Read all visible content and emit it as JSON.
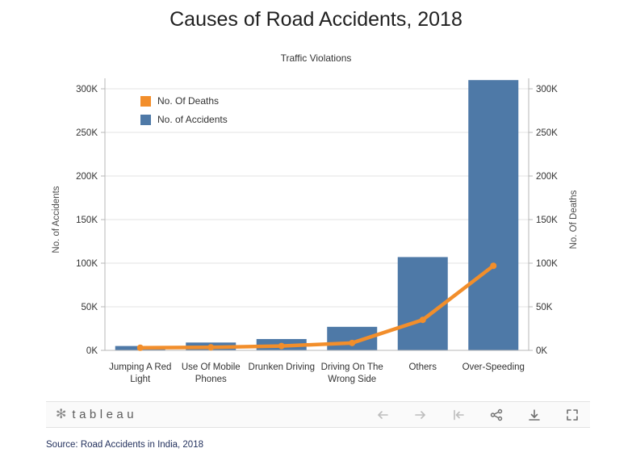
{
  "title": "Causes of Road Accidents, 2018",
  "chart_data": {
    "type": "bar",
    "subtitle": "Traffic Violations",
    "categories": [
      "Jumping A Red Light",
      "Use Of Mobile Phones",
      "Drunken Driving",
      "Driving On The Wrong Side",
      "Others",
      "Over-Speeding"
    ],
    "series": [
      {
        "name": "No. of Accidents",
        "mark": "bar",
        "color": "#4e79a7",
        "values": [
          5000,
          9000,
          13000,
          27000,
          107000,
          310000
        ]
      },
      {
        "name": "No. Of Deaths",
        "mark": "line",
        "color": "#f28e2b",
        "values": [
          3000,
          3500,
          5000,
          8500,
          35000,
          97000
        ]
      }
    ],
    "left_axis_label": "No. of Accidents",
    "right_axis_label": "No. Of Deaths",
    "y_ticks": [
      "0K",
      "50K",
      "100K",
      "150K",
      "200K",
      "250K",
      "300K"
    ],
    "y_tick_values": [
      0,
      50000,
      100000,
      150000,
      200000,
      250000,
      300000
    ],
    "ylim": [
      0,
      320000
    ],
    "grid": true,
    "legend_position": "top-left-inside",
    "legend": [
      {
        "label": "No. Of Deaths",
        "color": "#f28e2b"
      },
      {
        "label": "No. of Accidents",
        "color": "#4e79a7"
      }
    ]
  },
  "toolbar": {
    "logo_mark": "✻",
    "logo_text": "tableau",
    "icons": [
      "undo-icon",
      "redo-icon",
      "reset-icon",
      "share-icon",
      "download-icon",
      "fullscreen-icon"
    ]
  },
  "source": "Source: Road Accidents in India, 2018"
}
